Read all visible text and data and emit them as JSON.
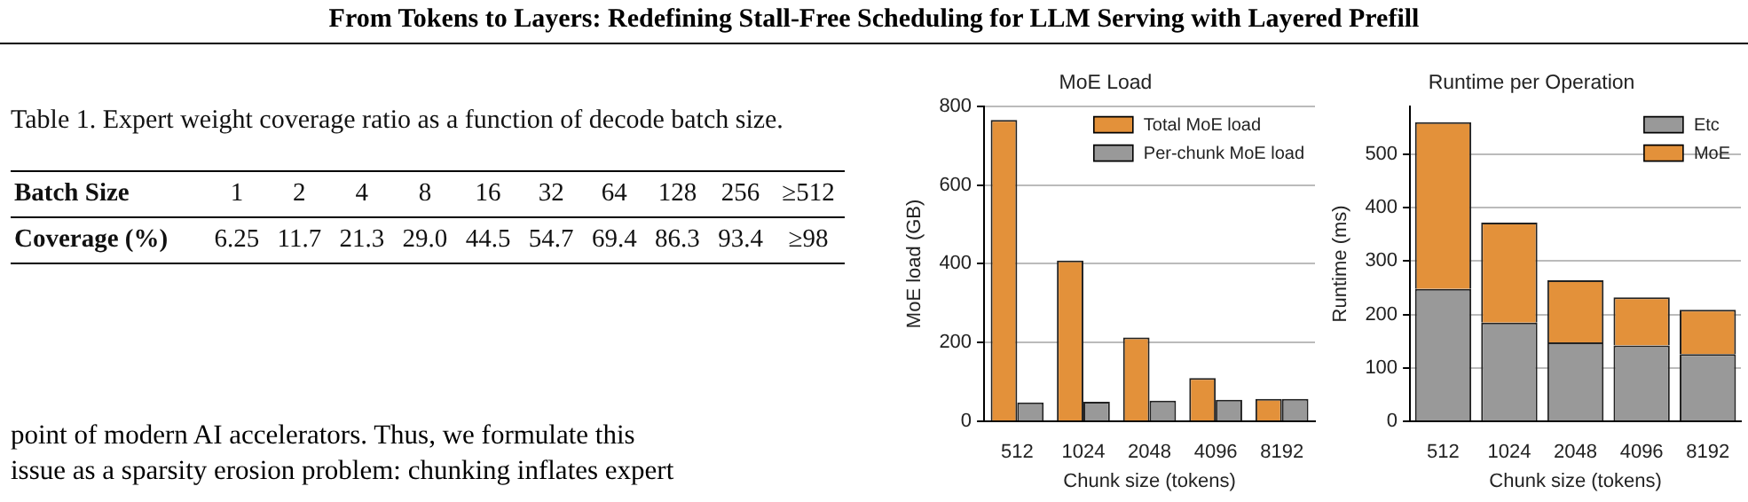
{
  "chart_data": [
    {
      "type": "other",
      "title": "From Tokens to Layers: Redefining Stall-Free Scheduling for LLM Serving with Layered Prefill",
      "annotations": [
        "Table 1. Expert weight coverage ratio as a function of decode batch size.",
        "Batch Size",
        "1",
        "2",
        "4",
        "8",
        "16",
        "32",
        "64",
        "128",
        "256",
        "≥512",
        "Coverage (%)",
        "6.25",
        "11.7",
        "21.3",
        "29.0",
        "44.5",
        "54.7",
        "69.4",
        "86.3",
        "93.4",
        "≥98",
        "point of modern AI accelerators. Thus, we formulate this",
        "issue as a sparsity erosion problem: chunking inflates expert"
      ]
    },
    {
      "type": "bar",
      "title": "MoE Load",
      "xlabel": "Chunk size (tokens)",
      "ylabel": "MoE load (GB)",
      "categories": [
        "512",
        "1024",
        "2048",
        "4096",
        "8192"
      ],
      "series": [
        {
          "name": "Total MoE load",
          "color": "#e3913a",
          "values": [
            765,
            408,
            213,
            110,
            57
          ]
        },
        {
          "name": "Per-chunk MoE load",
          "color": "#999999",
          "values": [
            48,
            50,
            53,
            55,
            57
          ]
        }
      ],
      "ylim": [
        0,
        800
      ],
      "yticks": [
        0,
        200,
        400,
        600,
        800
      ],
      "grid": "y",
      "legend": "top right"
    },
    {
      "type": "bar",
      "stacked": true,
      "title": "Runtime per Operation",
      "xlabel": "Chunk size (tokens)",
      "ylabel": "Runtime (ms)",
      "categories": [
        "512",
        "1024",
        "2048",
        "4096",
        "8192"
      ],
      "series": [
        {
          "name": "Etc",
          "color": "#999999",
          "values": [
            248,
            185,
            148,
            142,
            126
          ]
        },
        {
          "name": "MoE",
          "color": "#e3913a",
          "values": [
            312,
            187,
            116,
            90,
            83
          ]
        }
      ],
      "ylim": [
        0,
        590
      ],
      "yticks": [
        0,
        100,
        200,
        300,
        400,
        500
      ],
      "grid": "y",
      "legend": "top right"
    }
  ]
}
